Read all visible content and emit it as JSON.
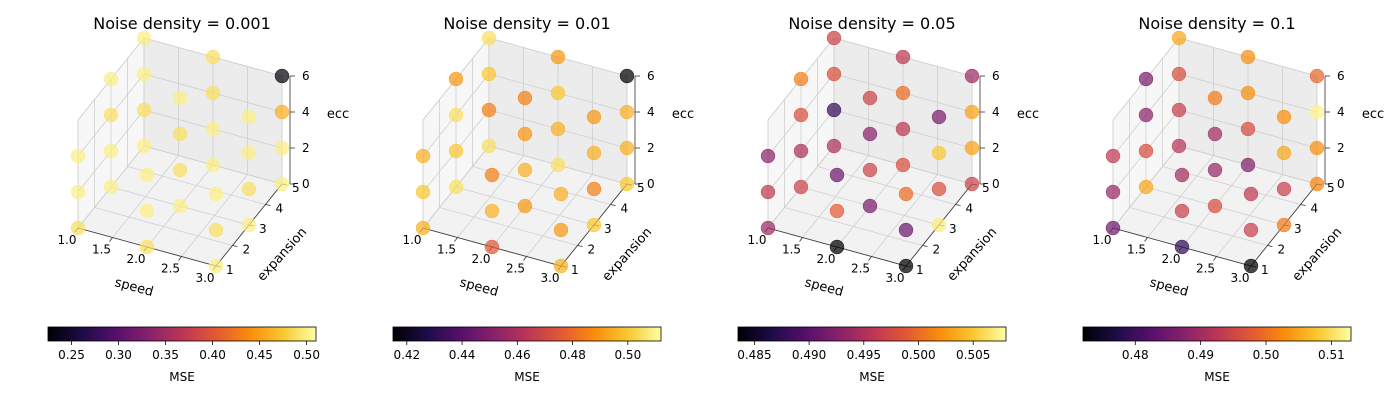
{
  "chart_data": [
    {
      "type": "scatter",
      "title": "Noise density = 0.001",
      "xlabel": "speed",
      "ylabel": "expansion",
      "zlabel": "ecc",
      "xticks": [
        "1.0",
        "1.5",
        "2.0",
        "2.5",
        "3.0"
      ],
      "yticks": [
        "1",
        "2",
        "3",
        "4",
        "5"
      ],
      "zticks": [
        "0",
        "2",
        "4",
        "6"
      ],
      "xlim": [
        1.0,
        3.0
      ],
      "ylim": [
        1,
        5
      ],
      "zlim": [
        0,
        6
      ],
      "grid": true,
      "colormap": "inferno",
      "colorbar": {
        "label": "MSE",
        "min": 0.225,
        "max": 0.51,
        "ticks": [
          "0.25",
          "0.30",
          "0.35",
          "0.40",
          "0.45",
          "0.50"
        ],
        "tick_values": [
          0.25,
          0.3,
          0.35,
          0.4,
          0.45,
          0.5
        ]
      },
      "points": [
        {
          "x": 1.0,
          "y": 1,
          "z": 0,
          "v": 0.49
        },
        {
          "x": 1.0,
          "y": 1,
          "z": 2,
          "v": 0.5
        },
        {
          "x": 1.0,
          "y": 1,
          "z": 4,
          "v": 0.5
        },
        {
          "x": 1.0,
          "y": 3,
          "z": 0,
          "v": 0.5
        },
        {
          "x": 1.0,
          "y": 3,
          "z": 2,
          "v": 0.5
        },
        {
          "x": 1.0,
          "y": 3,
          "z": 4,
          "v": 0.49
        },
        {
          "x": 1.0,
          "y": 3,
          "z": 6,
          "v": 0.5
        },
        {
          "x": 1.0,
          "y": 5,
          "z": 0,
          "v": 0.5
        },
        {
          "x": 1.0,
          "y": 5,
          "z": 2,
          "v": 0.49
        },
        {
          "x": 1.0,
          "y": 5,
          "z": 4,
          "v": 0.5
        },
        {
          "x": 1.0,
          "y": 5,
          "z": 6,
          "v": 0.5
        },
        {
          "x": 2.0,
          "y": 1,
          "z": 0,
          "v": 0.49
        },
        {
          "x": 2.0,
          "y": 1,
          "z": 2,
          "v": 0.5
        },
        {
          "x": 2.0,
          "y": 1,
          "z": 4,
          "v": 0.5
        },
        {
          "x": 2.0,
          "y": 3,
          "z": 0,
          "v": 0.5
        },
        {
          "x": 2.0,
          "y": 3,
          "z": 2,
          "v": 0.49
        },
        {
          "x": 2.0,
          "y": 3,
          "z": 4,
          "v": 0.49
        },
        {
          "x": 2.0,
          "y": 3,
          "z": 6,
          "v": 0.5
        },
        {
          "x": 2.0,
          "y": 5,
          "z": 0,
          "v": 0.5
        },
        {
          "x": 2.0,
          "y": 5,
          "z": 2,
          "v": 0.5
        },
        {
          "x": 2.0,
          "y": 5,
          "z": 4,
          "v": 0.49
        },
        {
          "x": 2.0,
          "y": 5,
          "z": 6,
          "v": 0.49
        },
        {
          "x": 3.0,
          "y": 1,
          "z": 0,
          "v": 0.5
        },
        {
          "x": 3.0,
          "y": 1,
          "z": 2,
          "v": 0.49
        },
        {
          "x": 3.0,
          "y": 1,
          "z": 4,
          "v": 0.5
        },
        {
          "x": 3.0,
          "y": 3,
          "z": 0,
          "v": 0.5
        },
        {
          "x": 3.0,
          "y": 3,
          "z": 2,
          "v": 0.49
        },
        {
          "x": 3.0,
          "y": 3,
          "z": 4,
          "v": 0.5
        },
        {
          "x": 3.0,
          "y": 3,
          "z": 6,
          "v": 0.5
        },
        {
          "x": 3.0,
          "y": 5,
          "z": 0,
          "v": 0.5
        },
        {
          "x": 3.0,
          "y": 5,
          "z": 2,
          "v": 0.5
        },
        {
          "x": 3.0,
          "y": 5,
          "z": 4,
          "v": 0.46
        },
        {
          "x": 3.0,
          "y": 5,
          "z": 6,
          "v": 0.23
        }
      ]
    },
    {
      "type": "scatter",
      "title": "Noise density = 0.01",
      "xlabel": "speed",
      "ylabel": "expansion",
      "zlabel": "ecc",
      "xticks": [
        "1.0",
        "1.5",
        "2.0",
        "2.5",
        "3.0"
      ],
      "yticks": [
        "1",
        "2",
        "3",
        "4",
        "5"
      ],
      "zticks": [
        "0",
        "2",
        "4",
        "6"
      ],
      "xlim": [
        1.0,
        3.0
      ],
      "ylim": [
        1,
        5
      ],
      "zlim": [
        0,
        6
      ],
      "grid": true,
      "colormap": "inferno",
      "colorbar": {
        "label": "MSE",
        "min": 0.415,
        "max": 0.512,
        "ticks": [
          "0.42",
          "0.44",
          "0.46",
          "0.48",
          "0.50"
        ],
        "tick_values": [
          0.42,
          0.44,
          0.46,
          0.48,
          0.5
        ]
      },
      "points": [
        {
          "x": 1.0,
          "y": 1,
          "z": 0,
          "v": 0.495
        },
        {
          "x": 1.0,
          "y": 1,
          "z": 2,
          "v": 0.5
        },
        {
          "x": 1.0,
          "y": 1,
          "z": 4,
          "v": 0.495
        },
        {
          "x": 1.0,
          "y": 3,
          "z": 0,
          "v": 0.505
        },
        {
          "x": 1.0,
          "y": 3,
          "z": 2,
          "v": 0.5
        },
        {
          "x": 1.0,
          "y": 3,
          "z": 4,
          "v": 0.505
        },
        {
          "x": 1.0,
          "y": 3,
          "z": 6,
          "v": 0.49
        },
        {
          "x": 1.0,
          "y": 5,
          "z": 0,
          "v": 0.505
        },
        {
          "x": 1.0,
          "y": 5,
          "z": 2,
          "v": 0.485
        },
        {
          "x": 1.0,
          "y": 5,
          "z": 4,
          "v": 0.5
        },
        {
          "x": 1.0,
          "y": 5,
          "z": 6,
          "v": 0.505
        },
        {
          "x": 2.0,
          "y": 1,
          "z": 0,
          "v": 0.475
        },
        {
          "x": 2.0,
          "y": 1,
          "z": 2,
          "v": 0.495
        },
        {
          "x": 2.0,
          "y": 1,
          "z": 4,
          "v": 0.485
        },
        {
          "x": 2.0,
          "y": 3,
          "z": 0,
          "v": 0.49
        },
        {
          "x": 2.0,
          "y": 3,
          "z": 2,
          "v": 0.495
        },
        {
          "x": 2.0,
          "y": 3,
          "z": 4,
          "v": 0.49
        },
        {
          "x": 2.0,
          "y": 3,
          "z": 6,
          "v": 0.485
        },
        {
          "x": 2.0,
          "y": 5,
          "z": 0,
          "v": 0.505
        },
        {
          "x": 2.0,
          "y": 5,
          "z": 2,
          "v": 0.495
        },
        {
          "x": 2.0,
          "y": 5,
          "z": 4,
          "v": 0.5
        },
        {
          "x": 2.0,
          "y": 5,
          "z": 6,
          "v": 0.49
        },
        {
          "x": 3.0,
          "y": 1,
          "z": 0,
          "v": 0.495
        },
        {
          "x": 3.0,
          "y": 1,
          "z": 2,
          "v": 0.49
        },
        {
          "x": 3.0,
          "y": 1,
          "z": 4,
          "v": 0.495
        },
        {
          "x": 3.0,
          "y": 3,
          "z": 0,
          "v": 0.5
        },
        {
          "x": 3.0,
          "y": 3,
          "z": 2,
          "v": 0.485
        },
        {
          "x": 3.0,
          "y": 3,
          "z": 4,
          "v": 0.495
        },
        {
          "x": 3.0,
          "y": 3,
          "z": 6,
          "v": 0.49
        },
        {
          "x": 3.0,
          "y": 5,
          "z": 0,
          "v": 0.5
        },
        {
          "x": 3.0,
          "y": 5,
          "z": 2,
          "v": 0.495
        },
        {
          "x": 3.0,
          "y": 5,
          "z": 4,
          "v": 0.495
        },
        {
          "x": 3.0,
          "y": 5,
          "z": 6,
          "v": 0.415
        }
      ]
    },
    {
      "type": "scatter",
      "title": "Noise density = 0.05",
      "xlabel": "speed",
      "ylabel": "expansion",
      "zlabel": "ecc",
      "xticks": [
        "1.0",
        "1.5",
        "2.0",
        "2.5",
        "3.0"
      ],
      "yticks": [
        "1",
        "2",
        "3",
        "4",
        "5"
      ],
      "zticks": [
        "0",
        "2",
        "4",
        "6"
      ],
      "xlim": [
        1.0,
        3.0
      ],
      "ylim": [
        1,
        5
      ],
      "zlim": [
        0,
        6
      ],
      "grid": true,
      "colormap": "inferno",
      "colorbar": {
        "label": "MSE",
        "min": 0.4835,
        "max": 0.508,
        "ticks": [
          "0.485",
          "0.490",
          "0.495",
          "0.500",
          "0.505"
        ],
        "tick_values": [
          0.485,
          0.49,
          0.495,
          0.5,
          0.505
        ]
      },
      "points": [
        {
          "x": 1.0,
          "y": 1,
          "z": 0,
          "v": 0.494
        },
        {
          "x": 1.0,
          "y": 1,
          "z": 2,
          "v": 0.496
        },
        {
          "x": 1.0,
          "y": 1,
          "z": 4,
          "v": 0.493
        },
        {
          "x": 1.0,
          "y": 3,
          "z": 0,
          "v": 0.497
        },
        {
          "x": 1.0,
          "y": 3,
          "z": 2,
          "v": 0.495
        },
        {
          "x": 1.0,
          "y": 3,
          "z": 4,
          "v": 0.498
        },
        {
          "x": 1.0,
          "y": 3,
          "z": 6,
          "v": 0.501
        },
        {
          "x": 1.0,
          "y": 5,
          "z": 0,
          "v": 0.495
        },
        {
          "x": 1.0,
          "y": 5,
          "z": 2,
          "v": 0.488
        },
        {
          "x": 1.0,
          "y": 5,
          "z": 4,
          "v": 0.498
        },
        {
          "x": 1.0,
          "y": 5,
          "z": 6,
          "v": 0.497
        },
        {
          "x": 2.0,
          "y": 1,
          "z": 0,
          "v": 0.4835
        },
        {
          "x": 2.0,
          "y": 1,
          "z": 2,
          "v": 0.499
        },
        {
          "x": 2.0,
          "y": 1,
          "z": 4,
          "v": 0.491
        },
        {
          "x": 2.0,
          "y": 3,
          "z": 0,
          "v": 0.492
        },
        {
          "x": 2.0,
          "y": 3,
          "z": 2,
          "v": 0.497
        },
        {
          "x": 2.0,
          "y": 3,
          "z": 4,
          "v": 0.493
        },
        {
          "x": 2.0,
          "y": 3,
          "z": 6,
          "v": 0.497
        },
        {
          "x": 2.0,
          "y": 5,
          "z": 0,
          "v": 0.498
        },
        {
          "x": 2.0,
          "y": 5,
          "z": 2,
          "v": 0.496
        },
        {
          "x": 2.0,
          "y": 5,
          "z": 4,
          "v": 0.5
        },
        {
          "x": 2.0,
          "y": 5,
          "z": 6,
          "v": 0.496
        },
        {
          "x": 3.0,
          "y": 1,
          "z": 0,
          "v": 0.4835
        },
        {
          "x": 3.0,
          "y": 1,
          "z": 2,
          "v": 0.491
        },
        {
          "x": 3.0,
          "y": 1,
          "z": 4,
          "v": 0.5
        },
        {
          "x": 3.0,
          "y": 3,
          "z": 0,
          "v": 0.507
        },
        {
          "x": 3.0,
          "y": 3,
          "z": 2,
          "v": 0.498
        },
        {
          "x": 3.0,
          "y": 3,
          "z": 4,
          "v": 0.505
        },
        {
          "x": 3.0,
          "y": 3,
          "z": 6,
          "v": 0.492
        },
        {
          "x": 3.0,
          "y": 5,
          "z": 0,
          "v": 0.497
        },
        {
          "x": 3.0,
          "y": 5,
          "z": 2,
          "v": 0.503
        },
        {
          "x": 3.0,
          "y": 5,
          "z": 4,
          "v": 0.503
        },
        {
          "x": 3.0,
          "y": 5,
          "z": 6,
          "v": 0.494
        }
      ]
    },
    {
      "type": "scatter",
      "title": "Noise density = 0.1",
      "xlabel": "speed",
      "ylabel": "expansion",
      "zlabel": "ecc",
      "xticks": [
        "1.0",
        "1.5",
        "2.0",
        "2.5",
        "3.0"
      ],
      "yticks": [
        "1",
        "2",
        "3",
        "4",
        "5"
      ],
      "zticks": [
        "0",
        "2",
        "4",
        "6"
      ],
      "xlim": [
        1.0,
        3.0
      ],
      "ylim": [
        1,
        5
      ],
      "zlim": [
        0,
        6
      ],
      "grid": true,
      "colormap": "inferno",
      "colorbar": {
        "label": "MSE",
        "min": 0.472,
        "max": 0.513,
        "ticks": [
          "0.48",
          "0.49",
          "0.50",
          "0.51"
        ],
        "tick_values": [
          0.48,
          0.49,
          0.5,
          0.51
        ]
      },
      "points": [
        {
          "x": 1.0,
          "y": 1,
          "z": 0,
          "v": 0.485
        },
        {
          "x": 1.0,
          "y": 1,
          "z": 2,
          "v": 0.489
        },
        {
          "x": 1.0,
          "y": 1,
          "z": 4,
          "v": 0.493
        },
        {
          "x": 1.0,
          "y": 3,
          "z": 0,
          "v": 0.505
        },
        {
          "x": 1.0,
          "y": 3,
          "z": 2,
          "v": 0.496
        },
        {
          "x": 1.0,
          "y": 3,
          "z": 4,
          "v": 0.488
        },
        {
          "x": 1.0,
          "y": 3,
          "z": 6,
          "v": 0.486
        },
        {
          "x": 1.0,
          "y": 5,
          "z": 0,
          "v": 0.492
        },
        {
          "x": 1.0,
          "y": 5,
          "z": 2,
          "v": 0.494
        },
        {
          "x": 1.0,
          "y": 5,
          "z": 4,
          "v": 0.496
        },
        {
          "x": 1.0,
          "y": 5,
          "z": 6,
          "v": 0.505
        },
        {
          "x": 2.0,
          "y": 1,
          "z": 0,
          "v": 0.479
        },
        {
          "x": 2.0,
          "y": 1,
          "z": 2,
          "v": 0.494
        },
        {
          "x": 2.0,
          "y": 1,
          "z": 4,
          "v": 0.49
        },
        {
          "x": 2.0,
          "y": 3,
          "z": 0,
          "v": 0.496
        },
        {
          "x": 2.0,
          "y": 3,
          "z": 2,
          "v": 0.489
        },
        {
          "x": 2.0,
          "y": 3,
          "z": 4,
          "v": 0.49
        },
        {
          "x": 2.0,
          "y": 3,
          "z": 6,
          "v": 0.501
        },
        {
          "x": 2.0,
          "y": 5,
          "z": 0,
          "v": 0.487
        },
        {
          "x": 2.0,
          "y": 5,
          "z": 2,
          "v": 0.496
        },
        {
          "x": 2.0,
          "y": 5,
          "z": 4,
          "v": 0.503
        },
        {
          "x": 2.0,
          "y": 5,
          "z": 6,
          "v": 0.503
        },
        {
          "x": 3.0,
          "y": 1,
          "z": 0,
          "v": 0.472
        },
        {
          "x": 3.0,
          "y": 1,
          "z": 2,
          "v": 0.494
        },
        {
          "x": 3.0,
          "y": 1,
          "z": 4,
          "v": 0.493
        },
        {
          "x": 3.0,
          "y": 3,
          "z": 0,
          "v": 0.501
        },
        {
          "x": 3.0,
          "y": 3,
          "z": 2,
          "v": 0.494
        },
        {
          "x": 3.0,
          "y": 3,
          "z": 4,
          "v": 0.505
        },
        {
          "x": 3.0,
          "y": 3,
          "z": 6,
          "v": 0.503
        },
        {
          "x": 3.0,
          "y": 5,
          "z": 0,
          "v": 0.502
        },
        {
          "x": 3.0,
          "y": 5,
          "z": 2,
          "v": 0.503
        },
        {
          "x": 3.0,
          "y": 5,
          "z": 4,
          "v": 0.512
        },
        {
          "x": 3.0,
          "y": 5,
          "z": 6,
          "v": 0.499
        }
      ]
    }
  ]
}
